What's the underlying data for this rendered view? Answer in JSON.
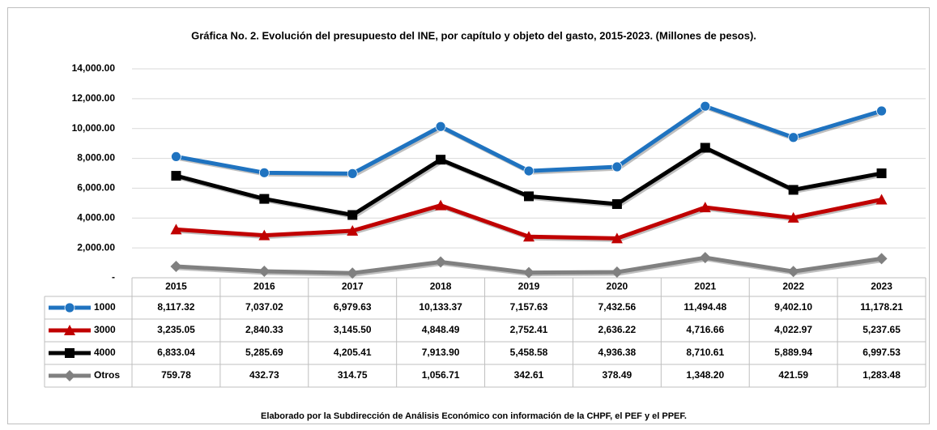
{
  "chart_data": {
    "type": "line",
    "title": "Gráfica No. 2. Evolución del presupuesto del INE, por capítulo y objeto del gasto, 2015-2023. (Millones de pesos).",
    "categories": [
      "2015",
      "2016",
      "2017",
      "2018",
      "2019",
      "2020",
      "2021",
      "2022",
      "2023"
    ],
    "series": [
      {
        "name": "1000",
        "color": "#1f73c0",
        "marker": "circle",
        "values": [
          8117.32,
          7037.02,
          6979.63,
          10133.37,
          7157.63,
          7432.56,
          11494.48,
          9402.1,
          11178.21
        ],
        "value_labels": [
          "8,117.32",
          "7,037.02",
          "6,979.63",
          "10,133.37",
          "7,157.63",
          "7,432.56",
          "11,494.48",
          "9,402.10",
          "11,178.21"
        ]
      },
      {
        "name": "3000",
        "color": "#c00000",
        "marker": "triangle",
        "values": [
          3235.05,
          2840.33,
          3145.5,
          4848.49,
          2752.41,
          2636.22,
          4716.66,
          4022.97,
          5237.65
        ],
        "value_labels": [
          "3,235.05",
          "2,840.33",
          "3,145.50",
          "4,848.49",
          "2,752.41",
          "2,636.22",
          "4,716.66",
          "4,022.97",
          "5,237.65"
        ]
      },
      {
        "name": "4000",
        "color": "#000000",
        "marker": "square",
        "values": [
          6833.04,
          5285.69,
          4205.41,
          7913.9,
          5458.58,
          4936.38,
          8710.61,
          5889.94,
          6997.53
        ],
        "value_labels": [
          "6,833.04",
          "5,285.69",
          "4,205.41",
          "7,913.90",
          "5,458.58",
          "4,936.38",
          "8,710.61",
          "5,889.94",
          "6,997.53"
        ]
      },
      {
        "name": "Otros",
        "color": "#808080",
        "marker": "diamond",
        "values": [
          759.78,
          432.73,
          314.75,
          1056.71,
          342.61,
          378.49,
          1348.2,
          421.59,
          1283.48
        ],
        "value_labels": [
          "759.78",
          "432.73",
          "314.75",
          "1,056.71",
          "342.61",
          "378.49",
          "1,348.20",
          "421.59",
          "1,283.48"
        ]
      }
    ],
    "ylim": [
      0,
      14000
    ],
    "yticks": [
      {
        "value": 0,
        "label": "-"
      },
      {
        "value": 2000,
        "label": "2,000.00"
      },
      {
        "value": 4000,
        "label": "4,000.00"
      },
      {
        "value": 6000,
        "label": "6,000.00"
      },
      {
        "value": 8000,
        "label": "8,000.00"
      },
      {
        "value": 10000,
        "label": "10,000.00"
      },
      {
        "value": 12000,
        "label": "12,000.00"
      },
      {
        "value": 14000,
        "label": "14,000.00"
      }
    ],
    "grid": true,
    "note": "Elaborado por la Subdirección de Análisis Económico con información de la CHPF, el PEF y el PPEF."
  }
}
